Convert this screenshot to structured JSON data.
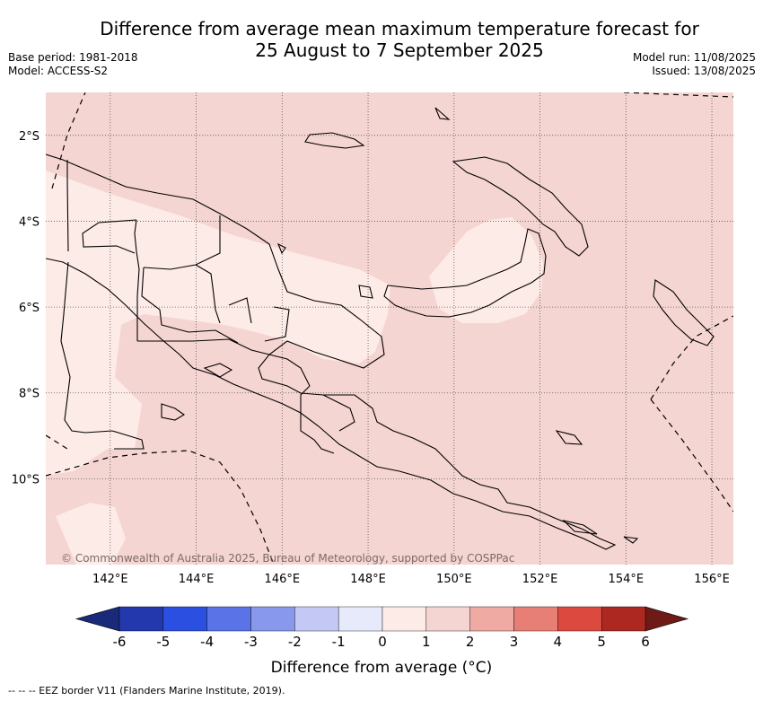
{
  "header": {
    "title_line1": "Difference from average mean maximum temperature forecast for",
    "title_line2": "25 August to 7 September 2025",
    "base_period": "Base period: 1981-2018",
    "model": "Model: ACCESS-S2",
    "model_run": "Model run: 11/08/2025",
    "issued": "Issued: 13/08/2025"
  },
  "map": {
    "lon_range": [
      140.5,
      156.5
    ],
    "lat_range": [
      -12.0,
      -1.0
    ],
    "lat_ticks": [
      "2°S",
      "4°S",
      "6°S",
      "8°S",
      "10°S"
    ],
    "lon_ticks": [
      "142°E",
      "144°E",
      "146°E",
      "148°E",
      "150°E",
      "152°E",
      "154°E",
      "156°E"
    ],
    "grid": true,
    "copyright": "© Commonwealth of Australia 2025, Bureau of Meteorology, supported by COSPPac",
    "fill_colors": {
      "0_1": "#fdebe8",
      "1_2": "#f5d5d1"
    }
  },
  "colorbar": {
    "tick_labels": [
      "-6",
      "-5",
      "-4",
      "-3",
      "-2",
      "-1",
      "0",
      "1",
      "2",
      "3",
      "4",
      "5",
      "6"
    ],
    "colors": [
      "#2338ad",
      "#2b4fe0",
      "#5a73e6",
      "#8898ec",
      "#c3c9f4",
      "#e6eafa",
      "#fdebe8",
      "#f5d5d1",
      "#efaaa3",
      "#e77f76",
      "#dc4a3f",
      "#ad2821"
    ],
    "under_color": "#1a2a7a",
    "over_color": "#6e1b17",
    "label": "Difference from average (°C)"
  },
  "footer": {
    "legend": "--  --  -- EEZ border V11 (Flanders Marine Institute, 2019)."
  }
}
